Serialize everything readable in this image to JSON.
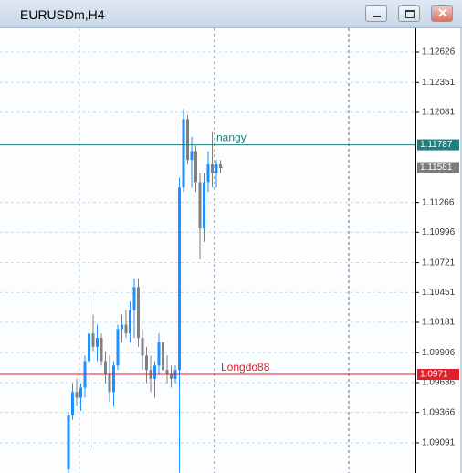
{
  "window_title": "EURUSDm,H4",
  "chart_data": {
    "type": "candlestick",
    "up_color": "#1e90ff",
    "down_color": "#808080",
    "open": [
      1.0885,
      1.0934,
      1.0955,
      1.095,
      1.0959,
      1.0983,
      1.1008,
      1.0996,
      1.1004,
      1.0983,
      1.0971,
      1.0955,
      1.0979,
      1.1012,
      1.1016,
      1.1008,
      1.1029,
      1.105,
      1.1004,
      1.0988,
      1.0975,
      1.0967,
      1.0979,
      1.1,
      1.0975,
      1.0971,
      1.0967,
      1.0975,
      1.114,
      1.1202,
      1.1165,
      1.1173,
      1.1145,
      1.1103,
      1.1145,
      1.1161,
      1.1153,
      1.1161
    ],
    "high": [
      1.0937,
      1.0963,
      1.0967,
      1.0963,
      1.0988,
      1.1045,
      1.1025,
      1.1016,
      1.1008,
      1.0992,
      1.0988,
      1.0983,
      1.1016,
      1.1025,
      1.1029,
      1.1037,
      1.1058,
      1.1058,
      1.1012,
      1.0996,
      1.0988,
      1.0983,
      1.1008,
      1.1004,
      1.0988,
      1.0979,
      1.0979,
      1.1149,
      1.1211,
      1.1206,
      1.1186,
      1.1178,
      1.1153,
      1.1153,
      1.1173,
      1.119,
      1.1165,
      1.1165
    ],
    "low": [
      1.0882,
      1.093,
      1.0942,
      1.0938,
      1.095,
      1.0905,
      1.0992,
      1.0983,
      1.0979,
      1.0963,
      1.0946,
      1.0942,
      1.0975,
      1.1,
      1.1004,
      1.1,
      1.1004,
      1.0996,
      1.0975,
      1.0963,
      1.0955,
      1.095,
      1.0971,
      1.0967,
      1.0963,
      1.0959,
      1.0963,
      1.0882,
      1.1136,
      1.1161,
      1.114,
      1.1136,
      1.1075,
      1.1091,
      1.1136,
      1.114,
      1.114,
      1.1153
    ],
    "close": [
      1.0934,
      1.0955,
      1.095,
      1.0959,
      1.0983,
      1.1008,
      1.0996,
      1.1004,
      1.0983,
      1.0971,
      1.0955,
      1.0979,
      1.1012,
      1.1016,
      1.1008,
      1.1029,
      1.105,
      1.1004,
      1.0988,
      1.0975,
      1.0967,
      1.0979,
      1.1,
      1.0975,
      1.0971,
      1.0967,
      1.0975,
      1.114,
      1.1202,
      1.1165,
      1.1173,
      1.1145,
      1.1103,
      1.1145,
      1.1161,
      1.1153,
      1.1161,
      1.1158
    ],
    "ylim": [
      1.08818,
      1.12849
    ],
    "yticks": [
      1.12626,
      1.12351,
      1.12081,
      1.11266,
      1.10996,
      1.10721,
      1.10451,
      1.10181,
      1.09906,
      1.09636,
      1.09366,
      1.09091
    ],
    "grid": true,
    "hlines": [
      {
        "name": "nangy",
        "value": 1.11787,
        "color": "#1d7f80"
      },
      {
        "name": "Longdo88",
        "value": 1.0971,
        "color": "#e0202a"
      }
    ],
    "bid": {
      "value": 1.11581,
      "color": "#7d7d7d"
    }
  }
}
